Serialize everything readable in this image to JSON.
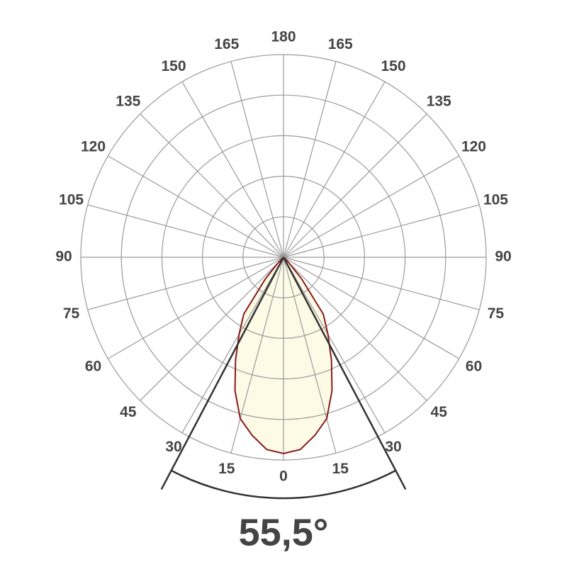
{
  "chart_data": {
    "type": "polar",
    "angle_ticks": [
      0,
      15,
      30,
      45,
      60,
      75,
      90,
      105,
      120,
      135,
      150,
      165,
      180
    ],
    "rlim": [
      0,
      5
    ],
    "rings": [
      1,
      2,
      3,
      4,
      5
    ],
    "angles": [
      0,
      5,
      10,
      15,
      20,
      25,
      30,
      35,
      40,
      45,
      50
    ],
    "values": [
      4.84,
      4.76,
      4.46,
      4.12,
      3.5,
      2.8,
      2.19,
      1.71,
      0.7,
      0.17,
      0
    ],
    "fill": "#fdfbe6",
    "color": "#8b1a1a",
    "grid_color": "#9a9a9a",
    "beam_angle": 55.5,
    "beam_label": "55,5°"
  }
}
